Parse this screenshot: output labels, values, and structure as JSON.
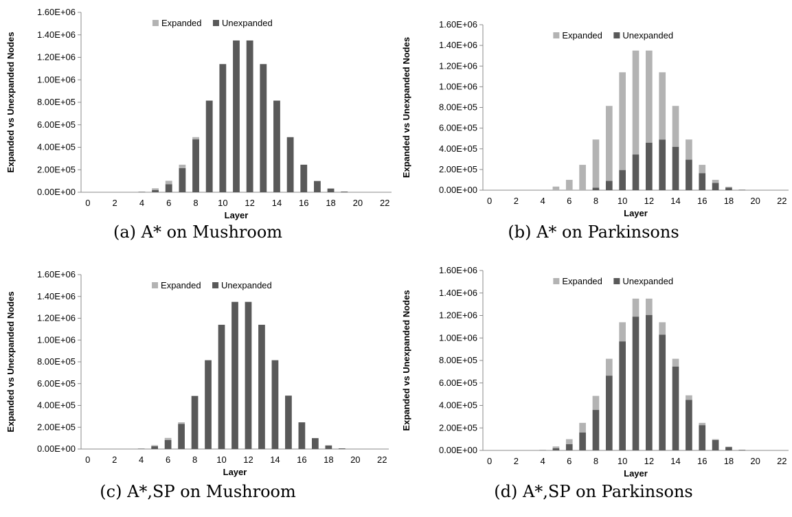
{
  "colors": {
    "expanded": "#b3b3b3",
    "unexpanded": "#595959",
    "axis": "#888888"
  },
  "chart_data": [
    {
      "type": "bar",
      "stacked": true,
      "caption": "(a)  A* on Mushroom",
      "xlabel": "Layer",
      "ylabel": "Expanded vs Unexpanded Nodes",
      "ylim": [
        0,
        1600000
      ],
      "yticks": [
        "0.00E+00",
        "2.00E+05",
        "4.00E+05",
        "6.00E+05",
        "8.00E+05",
        "1.00E+06",
        "1.20E+06",
        "1.40E+06",
        "1.60E+06"
      ],
      "xticks": [
        "0",
        "2",
        "4",
        "6",
        "8",
        "10",
        "12",
        "14",
        "16",
        "18",
        "20",
        "22"
      ],
      "legend": {
        "placement": "top-center"
      },
      "x": [
        0,
        1,
        2,
        3,
        4,
        5,
        6,
        7,
        8,
        9,
        10,
        11,
        12,
        13,
        14,
        15,
        16,
        17,
        18,
        19,
        20,
        21,
        22
      ],
      "series": [
        {
          "name": "Expanded",
          "values": [
            0,
            0,
            0,
            0,
            2000,
            15000,
            30000,
            30000,
            20000,
            0,
            0,
            0,
            0,
            0,
            0,
            0,
            0,
            0,
            0,
            0,
            0,
            0,
            0
          ]
        },
        {
          "name": "Unexpanded",
          "values": [
            0,
            0,
            0,
            0,
            3000,
            20000,
            72000,
            215000,
            470000,
            815000,
            1140000,
            1350000,
            1350000,
            1140000,
            815000,
            490000,
            245000,
            100000,
            33000,
            6000,
            0,
            0,
            0
          ]
        }
      ]
    },
    {
      "type": "bar",
      "stacked": true,
      "caption": "(b)  A* on Parkinsons",
      "xlabel": "Layer",
      "ylabel": "Expanded vs Unexpanded Nodes",
      "ylim": [
        0,
        1600000
      ],
      "yticks": [
        "0.00E+00",
        "2.00E+05",
        "4.00E+05",
        "6.00E+05",
        "8.00E+05",
        "1.00E+06",
        "1.20E+06",
        "1.40E+06",
        "1.60E+06"
      ],
      "xticks": [
        "0",
        "2",
        "4",
        "6",
        "8",
        "10",
        "12",
        "14",
        "16",
        "18",
        "20",
        "22"
      ],
      "legend": {
        "placement": "top-center"
      },
      "x": [
        0,
        1,
        2,
        3,
        4,
        5,
        6,
        7,
        8,
        9,
        10,
        11,
        12,
        13,
        14,
        15,
        16,
        17,
        18,
        19,
        20,
        21,
        22
      ],
      "series": [
        {
          "name": "Expanded",
          "values": [
            0,
            0,
            0,
            0,
            5000,
            35000,
            100000,
            245000,
            465000,
            725000,
            945000,
            1005000,
            890000,
            650000,
            395000,
            195000,
            80000,
            30000,
            8000,
            3000,
            0,
            0,
            0
          ]
        },
        {
          "name": "Unexpanded",
          "values": [
            0,
            0,
            0,
            0,
            0,
            0,
            0,
            0,
            25000,
            90000,
            195000,
            345000,
            460000,
            490000,
            420000,
            295000,
            165000,
            70000,
            25000,
            3000,
            0,
            0,
            0
          ]
        }
      ]
    },
    {
      "type": "bar",
      "stacked": true,
      "caption": "(c)  A*,SP on Mushroom",
      "xlabel": "Layer",
      "ylabel": "Expanded vs Unexpanded Nodes",
      "ylim": [
        0,
        1600000
      ],
      "yticks": [
        "0.00E+00",
        "2.00E+05",
        "4.00E+05",
        "6.00E+05",
        "8.00E+05",
        "1.00E+06",
        "1.20E+06",
        "1.40E+06",
        "1.60E+06"
      ],
      "xticks": [
        "0",
        "2",
        "4",
        "6",
        "8",
        "10",
        "12",
        "14",
        "16",
        "18",
        "20",
        "22"
      ],
      "legend": {
        "placement": "top-center"
      },
      "x": [
        0,
        1,
        2,
        3,
        4,
        5,
        6,
        7,
        8,
        9,
        10,
        11,
        12,
        13,
        14,
        15,
        16,
        17,
        18,
        19,
        20,
        21,
        22
      ],
      "series": [
        {
          "name": "Expanded",
          "values": [
            0,
            0,
            0,
            0,
            2000,
            10000,
            20000,
            15000,
            5000,
            0,
            0,
            0,
            0,
            0,
            0,
            0,
            0,
            0,
            0,
            0,
            0,
            0,
            0
          ]
        },
        {
          "name": "Unexpanded",
          "values": [
            0,
            0,
            0,
            0,
            3000,
            25000,
            82000,
            230000,
            485000,
            815000,
            1140000,
            1350000,
            1350000,
            1140000,
            815000,
            490000,
            245000,
            100000,
            33000,
            6000,
            0,
            0,
            0
          ]
        }
      ]
    },
    {
      "type": "bar",
      "stacked": true,
      "caption": "(d)  A*,SP on Parkinsons",
      "xlabel": "Layer",
      "ylabel": "Expanded vs Unexpanded Nodes",
      "ylim": [
        0,
        1600000
      ],
      "yticks": [
        "0.00E+00",
        "2.00E+05",
        "4.00E+05",
        "6.00E+05",
        "8.00E+05",
        "1.00E+06",
        "1.20E+06",
        "1.40E+06",
        "1.60E+06"
      ],
      "xticks": [
        "0",
        "2",
        "4",
        "6",
        "8",
        "10",
        "12",
        "14",
        "16",
        "18",
        "20",
        "22"
      ],
      "legend": {
        "placement": "top-center"
      },
      "x": [
        0,
        1,
        2,
        3,
        4,
        5,
        6,
        7,
        8,
        9,
        10,
        11,
        12,
        13,
        14,
        15,
        16,
        17,
        18,
        19,
        20,
        21,
        22
      ],
      "series": [
        {
          "name": "Expanded",
          "values": [
            0,
            0,
            0,
            0,
            3000,
            15000,
            45000,
            85000,
            125000,
            150000,
            170000,
            160000,
            145000,
            110000,
            70000,
            40000,
            20000,
            8000,
            3000,
            1000,
            0,
            0,
            0
          ]
        },
        {
          "name": "Unexpanded",
          "values": [
            0,
            0,
            0,
            0,
            2000,
            20000,
            55000,
            160000,
            360000,
            665000,
            970000,
            1190000,
            1205000,
            1030000,
            745000,
            450000,
            225000,
            92000,
            30000,
            5000,
            0,
            0,
            0
          ]
        }
      ]
    }
  ]
}
